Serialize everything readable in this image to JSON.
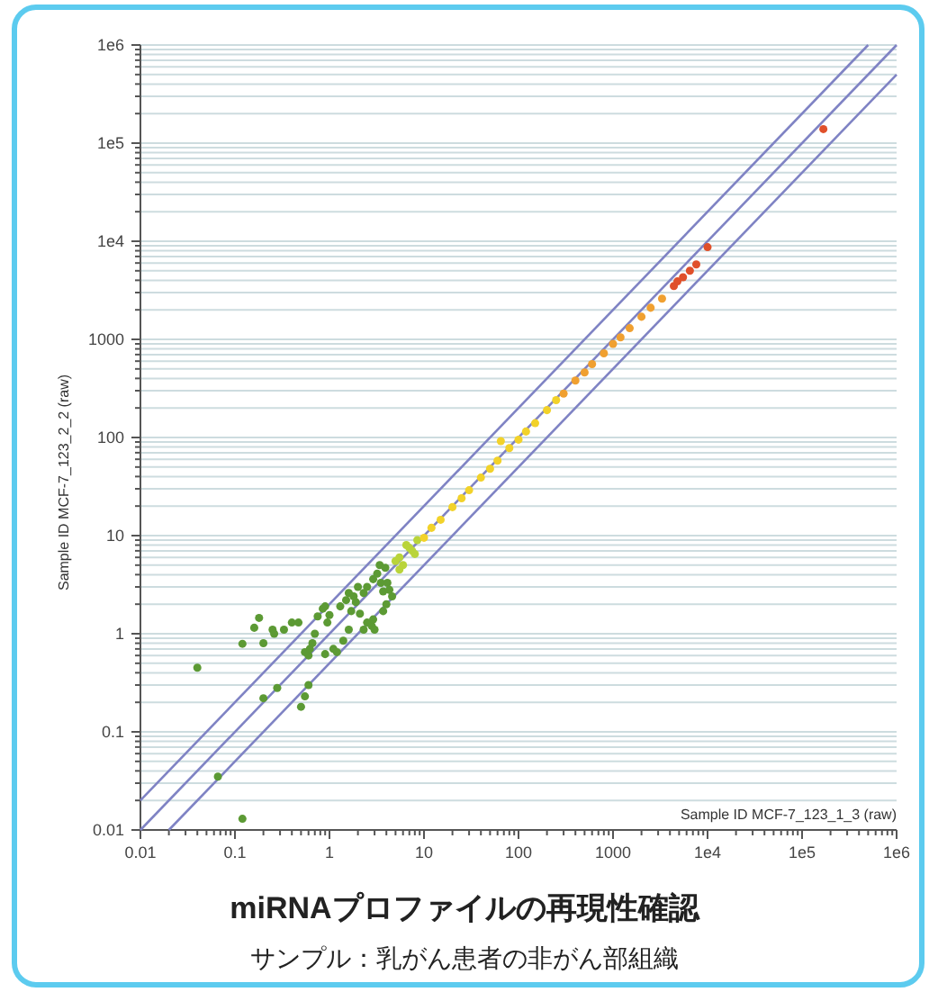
{
  "chart_data": {
    "type": "scatter",
    "title": "miRNAプロファイルの再現性確認",
    "subtitle": "サンプル：乳がん患者の非がん部組織",
    "xlabel": "Sample ID MCF-7_123_1_3  (raw)",
    "ylabel": "Sample ID MCF-7_123_2_2  (raw)",
    "log": "xy",
    "grid": "y",
    "marker": "circle",
    "xlim": [
      0.01,
      1000000
    ],
    "ylim": [
      0.01,
      1000000
    ],
    "xticks": [
      0.01,
      {
        "value": 0.02,
        "label": null
      },
      {
        "value": 0.03,
        "label": null
      },
      {
        "value": 0.04,
        "label": null
      },
      {
        "value": 0.05,
        "label": null
      },
      {
        "value": 0.06,
        "label": null
      },
      {
        "value": 0.07,
        "label": null
      },
      {
        "value": 0.08,
        "label": null
      },
      {
        "value": 0.09,
        "label": null
      },
      0.1,
      {
        "value": 0.2,
        "label": null
      },
      {
        "value": 0.3,
        "label": null
      },
      {
        "value": 0.4,
        "label": null
      },
      {
        "value": 0.5,
        "label": null
      },
      {
        "value": 0.6,
        "label": null
      },
      {
        "value": 0.7,
        "label": null
      },
      {
        "value": 0.8,
        "label": null
      },
      {
        "value": 0.9,
        "label": null
      },
      1,
      {
        "value": 2,
        "label": null
      },
      {
        "value": 3,
        "label": null
      },
      {
        "value": 4,
        "label": null
      },
      {
        "value": 5,
        "label": null
      },
      {
        "value": 6,
        "label": null
      },
      {
        "value": 7,
        "label": null
      },
      {
        "value": 8,
        "label": null
      },
      {
        "value": 9,
        "label": null
      },
      10,
      {
        "value": 20,
        "label": null
      },
      {
        "value": 30,
        "label": null
      },
      {
        "value": 40,
        "label": null
      },
      {
        "value": 50,
        "label": null
      },
      {
        "value": 60,
        "label": null
      },
      {
        "value": 70,
        "label": null
      },
      {
        "value": 80,
        "label": null
      },
      {
        "value": 90,
        "label": null
      },
      100,
      {
        "value": 200,
        "label": null
      },
      {
        "value": 300,
        "label": null
      },
      {
        "value": 400,
        "label": null
      },
      {
        "value": 500,
        "label": null
      },
      {
        "value": 600,
        "label": null
      },
      {
        "value": 700,
        "label": null
      },
      {
        "value": 800,
        "label": null
      },
      {
        "value": 900,
        "label": null
      },
      1000,
      {
        "value": 2000,
        "label": null
      },
      {
        "value": 3000,
        "label": null
      },
      {
        "value": 4000,
        "label": null
      },
      {
        "value": 5000,
        "label": null
      },
      {
        "value": 6000,
        "label": null
      },
      {
        "value": 7000,
        "label": null
      },
      {
        "value": 8000,
        "label": null
      },
      {
        "value": 9000,
        "label": null
      },
      {
        "value": 10000,
        "label": "1e4"
      },
      {
        "value": 20000,
        "label": null
      },
      {
        "value": 30000,
        "label": null
      },
      {
        "value": 40000,
        "label": null
      },
      {
        "value": 50000,
        "label": null
      },
      {
        "value": 60000,
        "label": null
      },
      {
        "value": 70000,
        "label": null
      },
      {
        "value": 80000,
        "label": null
      },
      {
        "value": 90000,
        "label": null
      },
      {
        "value": 100000,
        "label": "1e5"
      },
      {
        "value": 200000,
        "label": null
      },
      {
        "value": 300000,
        "label": null
      },
      {
        "value": 400000,
        "label": null
      },
      {
        "value": 500000,
        "label": null
      },
      {
        "value": 600000,
        "label": null
      },
      {
        "value": 700000,
        "label": null
      },
      {
        "value": 800000,
        "label": null
      },
      {
        "value": 900000,
        "label": null
      },
      {
        "value": 1000000,
        "label": "1e6"
      }
    ],
    "yticks": [
      0.01,
      {
        "value": 0.02,
        "label": null
      },
      {
        "value": 0.03,
        "label": null
      },
      {
        "value": 0.04,
        "label": null
      },
      {
        "value": 0.05,
        "label": null
      },
      {
        "value": 0.06,
        "label": null
      },
      {
        "value": 0.07,
        "label": null
      },
      {
        "value": 0.08,
        "label": null
      },
      {
        "value": 0.09,
        "label": null
      },
      0.1,
      {
        "value": 0.2,
        "label": null
      },
      {
        "value": 0.3,
        "label": null
      },
      {
        "value": 0.4,
        "label": null
      },
      {
        "value": 0.5,
        "label": null
      },
      {
        "value": 0.6,
        "label": null
      },
      {
        "value": 0.7,
        "label": null
      },
      {
        "value": 0.8,
        "label": null
      },
      {
        "value": 0.9,
        "label": null
      },
      1,
      {
        "value": 2,
        "label": null
      },
      {
        "value": 3,
        "label": null
      },
      {
        "value": 4,
        "label": null
      },
      {
        "value": 5,
        "label": null
      },
      {
        "value": 6,
        "label": null
      },
      {
        "value": 7,
        "label": null
      },
      {
        "value": 8,
        "label": null
      },
      {
        "value": 9,
        "label": null
      },
      10,
      {
        "value": 20,
        "label": null
      },
      {
        "value": 30,
        "label": null
      },
      {
        "value": 40,
        "label": null
      },
      {
        "value": 50,
        "label": null
      },
      {
        "value": 60,
        "label": null
      },
      {
        "value": 70,
        "label": null
      },
      {
        "value": 80,
        "label": null
      },
      {
        "value": 90,
        "label": null
      },
      100,
      {
        "value": 200,
        "label": null
      },
      {
        "value": 300,
        "label": null
      },
      {
        "value": 400,
        "label": null
      },
      {
        "value": 500,
        "label": null
      },
      {
        "value": 600,
        "label": null
      },
      {
        "value": 700,
        "label": null
      },
      {
        "value": 800,
        "label": null
      },
      {
        "value": 900,
        "label": null
      },
      1000,
      {
        "value": 2000,
        "label": null
      },
      {
        "value": 3000,
        "label": null
      },
      {
        "value": 4000,
        "label": null
      },
      {
        "value": 5000,
        "label": null
      },
      {
        "value": 6000,
        "label": null
      },
      {
        "value": 7000,
        "label": null
      },
      {
        "value": 8000,
        "label": null
      },
      {
        "value": 9000,
        "label": null
      },
      {
        "value": 10000,
        "label": "1e4"
      },
      {
        "value": 20000,
        "label": null
      },
      {
        "value": 30000,
        "label": null
      },
      {
        "value": 40000,
        "label": null
      },
      {
        "value": 50000,
        "label": null
      },
      {
        "value": 60000,
        "label": null
      },
      {
        "value": 70000,
        "label": null
      },
      {
        "value": 80000,
        "label": null
      },
      {
        "value": 90000,
        "label": null
      },
      {
        "value": 100000,
        "label": "1e5"
      },
      {
        "value": 200000,
        "label": null
      },
      {
        "value": 300000,
        "label": null
      },
      {
        "value": 400000,
        "label": null
      },
      {
        "value": 500000,
        "label": null
      },
      {
        "value": 600000,
        "label": null
      },
      {
        "value": 700000,
        "label": null
      },
      {
        "value": 800000,
        "label": null
      },
      {
        "value": 900000,
        "label": null
      },
      {
        "value": 1000000,
        "label": "1e6"
      }
    ],
    "series": [
      {
        "type": "line",
        "marker": "none",
        "color": "#7f83c4",
        "x": [
          0.01,
          500000
        ],
        "values": [
          0.02,
          1000000
        ]
      },
      {
        "type": "line",
        "marker": "none",
        "color": "#7f83c4",
        "x": [
          0.01,
          1000000
        ],
        "values": [
          0.01,
          1000000
        ]
      },
      {
        "type": "line",
        "marker": "none",
        "color": "#7f83c4",
        "x": [
          0.02,
          1000000
        ],
        "values": [
          0.01,
          500000
        ]
      },
      {
        "color": "#5c9a34",
        "x": [
          0.04,
          0.066,
          0.12,
          0.12,
          0.18,
          0.16,
          0.2,
          0.2,
          0.25,
          0.26,
          0.28,
          0.33,
          0.4,
          0.47,
          0.5,
          0.55,
          0.6,
          0.55,
          0.6,
          0.62,
          0.66,
          0.7,
          0.75,
          0.85,
          0.95,
          0.9,
          1.0,
          0.9,
          1.1,
          1.3,
          1.4,
          1.6,
          1.2,
          1.7,
          1.9,
          2.0,
          2.1,
          2.3,
          2.5,
          2.8,
          2.9,
          3.0,
          2.3,
          2.5,
          2.9,
          3.2,
          3.5,
          3.7,
          4.1,
          4.3,
          4.6,
          3.4,
          3.9,
          1.6,
          1.8,
          1.5,
          4.0,
          3.7
        ],
        "values": [
          0.45,
          0.035,
          0.013,
          0.79,
          1.45,
          1.15,
          0.8,
          0.22,
          1.1,
          1.0,
          0.28,
          1.1,
          1.3,
          1.3,
          0.18,
          0.23,
          0.3,
          0.65,
          0.6,
          0.7,
          0.8,
          1.0,
          1.5,
          1.8,
          1.3,
          1.9,
          1.55,
          0.62,
          0.7,
          1.9,
          0.85,
          1.1,
          0.65,
          1.7,
          2.1,
          3.0,
          1.6,
          1.1,
          1.3,
          1.2,
          1.4,
          1.1,
          2.6,
          3.0,
          3.6,
          4.1,
          3.3,
          2.7,
          3.3,
          2.8,
          2.4,
          5.0,
          4.7,
          2.6,
          2.4,
          2.2,
          2.0,
          1.7
        ]
      },
      {
        "color": "#b9d43a",
        "x": [
          5,
          5.5,
          6,
          6.5,
          7,
          8,
          5.5,
          7.5,
          8.5
        ],
        "values": [
          5.5,
          4.5,
          5,
          8,
          7.5,
          6.5,
          6,
          7,
          9
        ]
      },
      {
        "color": "#f2d22a",
        "x": [
          10,
          12,
          15,
          20,
          25,
          30,
          40,
          50,
          60,
          65,
          80,
          100,
          120,
          150,
          200,
          250
        ],
        "values": [
          9.5,
          12,
          14.5,
          19.5,
          24,
          29,
          39,
          48,
          58,
          92,
          78,
          95,
          115,
          140,
          190,
          240
        ]
      },
      {
        "color": "#f0a030",
        "x": [
          300,
          400,
          500,
          600,
          800,
          1000,
          1200,
          1500,
          2000,
          2500,
          3300
        ],
        "values": [
          280,
          380,
          460,
          560,
          720,
          900,
          1050,
          1300,
          1700,
          2100,
          2600
        ]
      },
      {
        "color": "#e0502a",
        "x": [
          4400,
          4800,
          5500,
          6500,
          7600,
          10000,
          168000
        ],
        "values": [
          3500,
          3900,
          4300,
          5000,
          5800,
          8700,
          139000
        ]
      }
    ]
  }
}
